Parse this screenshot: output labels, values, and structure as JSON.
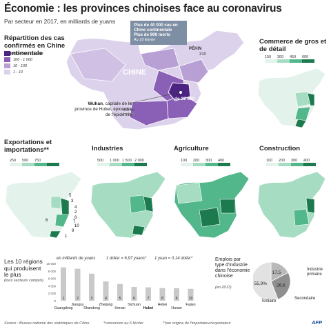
{
  "header": {
    "title": "Économie : les provinces chinoises face au coronavirus",
    "subtitle": "Par secteur en 2017, en milliards de yuans"
  },
  "main_map": {
    "title": "Répartition des cas confirmés en Chine continentale",
    "legend": [
      "Plus de 1 000 cas",
      "100 - 1 000",
      "10 - 100",
      "1 - 10"
    ],
    "legend_colors": [
      "#4a2480",
      "#8a5fb6",
      "#b9a0d4",
      "#ddd2ec"
    ],
    "country_label": "CHINE",
    "beijing_label": "PÉKIN",
    "beijing_value": "310",
    "hubei_value": "29 600",
    "hubei_prefix": "de",
    "wuhan_label": "Wuhan",
    "wuhan_text": ", capitale de la province de Hubei, épicentre de l'épidémie",
    "scale_label": "500 km",
    "info_line1": "Plus de 40 000 cas en Chine continentale",
    "info_line2": "Plus de 900 morts",
    "info_line3": "Au 10 février"
  },
  "maps": {
    "commerce": {
      "title": "Commerce de gros et de détail",
      "ticks": [
        "150",
        "300",
        "450",
        "600"
      ]
    },
    "exports": {
      "title": "Exportations et importations**",
      "ticks": [
        "250",
        "500",
        "750"
      ],
      "labels": [
        "1",
        "2",
        "3",
        "4",
        "5",
        "6",
        "7",
        "8",
        "9",
        "10"
      ]
    },
    "industries": {
      "title": "Industries",
      "ticks": [
        "500",
        "1 000",
        "1 500",
        "2 000"
      ]
    },
    "agriculture": {
      "title": "Agriculture",
      "ticks": [
        "100",
        "200",
        "300",
        "400"
      ]
    },
    "construction": {
      "title": "Construction",
      "ticks": [
        "100",
        "200",
        "300",
        "400"
      ]
    }
  },
  "bar_section": {
    "title": "Les 10 régions qui produisent le plus",
    "subtitle": "(tous secteurs compris)",
    "unit": "en milliards de yuans",
    "note1": "1 dollar = 6,97 yuans*",
    "note2": "1 yuan = 0,14 dollar*"
  },
  "chart_data": [
    {
      "type": "bar",
      "categories": [
        "Guangdong",
        "Jiangsu",
        "Shandong",
        "Zhejiang",
        "Henan",
        "Sichuan",
        "Hubei",
        "Hebei",
        "Hunan",
        "Fujian"
      ],
      "ranks": [
        "1",
        "2",
        "3",
        "4",
        "5",
        "6",
        "7",
        "8",
        "9",
        "10"
      ],
      "values": [
        8.96,
        8.59,
        7.27,
        5.18,
        4.49,
        3.7,
        3.59,
        3.4,
        3.38,
        3.2
      ],
      "y_ticks": [
        "0",
        "2 000",
        "4 000",
        "6 000",
        "8 000",
        "10 000"
      ],
      "ylim": [
        0,
        10
      ],
      "color": "#c9c9c9",
      "highlight": "Hubei"
    },
    {
      "type": "pie",
      "title": "Emplois par type d'industrie dans l'économie chinoise",
      "subtitle": "(en 2017)",
      "values": [
        17.5,
        26.6,
        55.9
      ],
      "value_labels": [
        "17,5",
        "26,6",
        "55,9%"
      ],
      "labels": [
        "Industrie primaire",
        "Secondaire",
        "Tertiaire"
      ],
      "colors": [
        "#b9b9b9",
        "#8f8f8f",
        "#e2e2e2"
      ]
    }
  ],
  "footer": {
    "source": "Source : Bureau national des statistiques de Chine",
    "note1": "*conversion au 6 février",
    "note2": "**par origine de l'importateur/exportateur",
    "logo": "AFP"
  }
}
